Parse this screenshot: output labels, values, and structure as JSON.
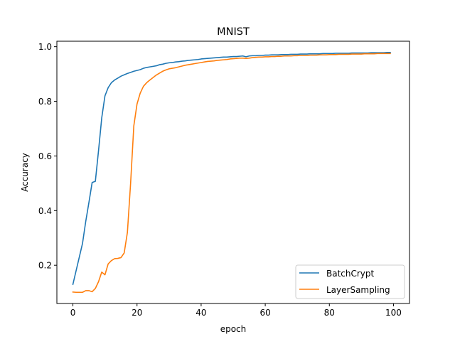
{
  "chart_data": {
    "type": "line",
    "title": "MNIST",
    "xlabel": "epoch",
    "ylabel": "Accuracy",
    "xlim": [
      -5,
      105
    ],
    "ylim": [
      0.06,
      1.02
    ],
    "xticks": [
      0,
      20,
      40,
      60,
      80,
      100
    ],
    "yticks": [
      0.2,
      0.4,
      0.6,
      0.8,
      1.0
    ],
    "xtick_labels": [
      "0",
      "20",
      "40",
      "60",
      "80",
      "100"
    ],
    "ytick_labels": [
      "0.2",
      "0.4",
      "0.6",
      "0.8",
      "1.0"
    ],
    "grid": false,
    "legend_position": "lower right",
    "series": [
      {
        "name": "BatchCrypt",
        "color": "#1f77b4",
        "x": [
          0,
          1,
          2,
          3,
          4,
          5,
          6,
          7,
          8,
          9,
          10,
          11,
          12,
          13,
          14,
          15,
          16,
          17,
          18,
          19,
          20,
          21,
          22,
          23,
          24,
          25,
          26,
          27,
          28,
          29,
          30,
          31,
          32,
          33,
          34,
          35,
          36,
          37,
          38,
          39,
          40,
          41,
          42,
          43,
          44,
          45,
          46,
          47,
          48,
          49,
          50,
          51,
          52,
          53,
          54,
          55,
          56,
          57,
          58,
          59,
          60,
          61,
          62,
          63,
          64,
          65,
          66,
          67,
          68,
          69,
          70,
          71,
          72,
          73,
          74,
          75,
          76,
          77,
          78,
          79,
          80,
          81,
          82,
          83,
          84,
          85,
          86,
          87,
          88,
          89,
          90,
          91,
          92,
          93,
          94,
          95,
          96,
          97,
          98,
          99
        ],
        "y": [
          0.13,
          0.18,
          0.23,
          0.28,
          0.36,
          0.43,
          0.503,
          0.507,
          0.62,
          0.74,
          0.82,
          0.85,
          0.868,
          0.878,
          0.885,
          0.892,
          0.897,
          0.902,
          0.906,
          0.91,
          0.913,
          0.916,
          0.921,
          0.924,
          0.926,
          0.928,
          0.93,
          0.934,
          0.936,
          0.939,
          0.941,
          0.942,
          0.944,
          0.945,
          0.947,
          0.948,
          0.95,
          0.951,
          0.952,
          0.953,
          0.955,
          0.956,
          0.957,
          0.958,
          0.959,
          0.96,
          0.961,
          0.962,
          0.962,
          0.963,
          0.964,
          0.964,
          0.965,
          0.966,
          0.963,
          0.966,
          0.967,
          0.967,
          0.968,
          0.968,
          0.969,
          0.969,
          0.97,
          0.97,
          0.97,
          0.971,
          0.971,
          0.971,
          0.972,
          0.972,
          0.972,
          0.973,
          0.973,
          0.973,
          0.974,
          0.974,
          0.974,
          0.974,
          0.975,
          0.975,
          0.975,
          0.975,
          0.976,
          0.976,
          0.976,
          0.976,
          0.976,
          0.977,
          0.977,
          0.977,
          0.977,
          0.977,
          0.977,
          0.978,
          0.978,
          0.978,
          0.978,
          0.978,
          0.979,
          0.979
        ]
      },
      {
        "name": "LayerSampling",
        "color": "#ff7f0e",
        "x": [
          0,
          1,
          2,
          3,
          4,
          5,
          6,
          7,
          8,
          9,
          10,
          11,
          12,
          13,
          14,
          15,
          16,
          17,
          18,
          19,
          20,
          21,
          22,
          23,
          24,
          25,
          26,
          27,
          28,
          29,
          30,
          31,
          32,
          33,
          34,
          35,
          36,
          37,
          38,
          39,
          40,
          41,
          42,
          43,
          44,
          45,
          46,
          47,
          48,
          49,
          50,
          51,
          52,
          53,
          54,
          55,
          56,
          57,
          58,
          59,
          60,
          61,
          62,
          63,
          64,
          65,
          66,
          67,
          68,
          69,
          70,
          71,
          72,
          73,
          74,
          75,
          76,
          77,
          78,
          79,
          80,
          81,
          82,
          83,
          84,
          85,
          86,
          87,
          88,
          89,
          90,
          91,
          92,
          93,
          94,
          95,
          96,
          97,
          98,
          99
        ],
        "y": [
          0.102,
          0.101,
          0.101,
          0.101,
          0.107,
          0.107,
          0.103,
          0.115,
          0.14,
          0.175,
          0.165,
          0.205,
          0.217,
          0.224,
          0.225,
          0.228,
          0.245,
          0.32,
          0.5,
          0.71,
          0.79,
          0.83,
          0.855,
          0.868,
          0.878,
          0.887,
          0.896,
          0.903,
          0.91,
          0.915,
          0.919,
          0.921,
          0.923,
          0.926,
          0.929,
          0.932,
          0.934,
          0.936,
          0.938,
          0.94,
          0.942,
          0.944,
          0.946,
          0.947,
          0.948,
          0.95,
          0.951,
          0.952,
          0.953,
          0.955,
          0.956,
          0.957,
          0.958,
          0.958,
          0.957,
          0.958,
          0.96,
          0.961,
          0.962,
          0.962,
          0.963,
          0.963,
          0.964,
          0.964,
          0.965,
          0.965,
          0.966,
          0.966,
          0.966,
          0.967,
          0.967,
          0.968,
          0.968,
          0.968,
          0.969,
          0.969,
          0.969,
          0.97,
          0.97,
          0.97,
          0.971,
          0.971,
          0.971,
          0.972,
          0.972,
          0.972,
          0.972,
          0.973,
          0.973,
          0.973,
          0.973,
          0.974,
          0.974,
          0.974,
          0.974,
          0.975,
          0.975,
          0.975,
          0.975,
          0.975
        ]
      }
    ]
  }
}
